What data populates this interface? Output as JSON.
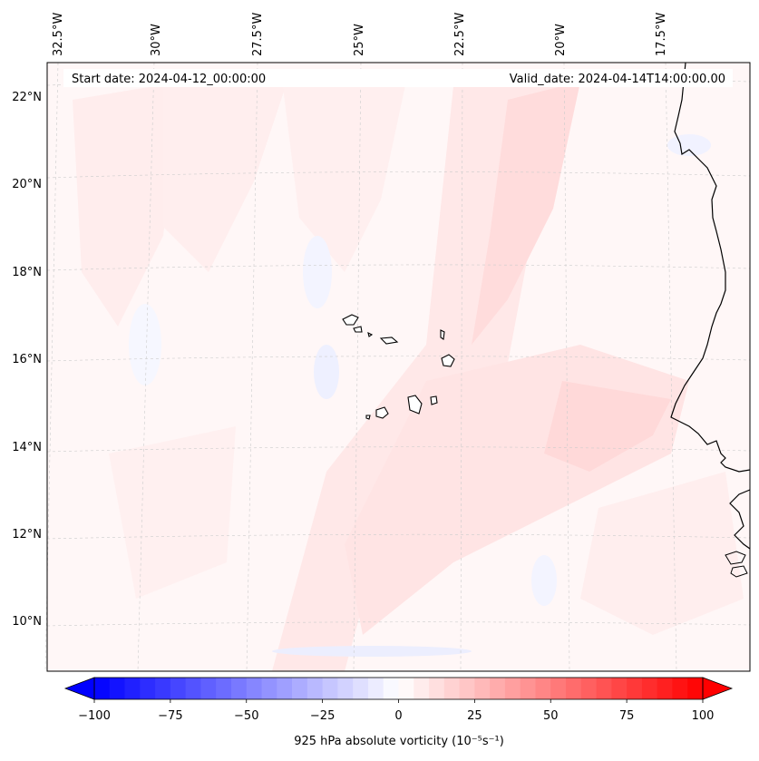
{
  "header": {
    "start_date": "Start date: 2024-04-12_00:00:00",
    "valid_date": "Valid_date: 2024-04-14T14:00:00.00"
  },
  "axes": {
    "lon_labels": [
      "32.5°W",
      "30°W",
      "27.5°W",
      "25°W",
      "22.5°W",
      "20°W",
      "17.5°W"
    ],
    "lat_labels": [
      "22°N",
      "20°N",
      "18°N",
      "16°N",
      "14°N",
      "12°N",
      "10°N"
    ]
  },
  "colorbar": {
    "ticks": [
      "−100",
      "−75",
      "−50",
      "−25",
      "0",
      "25",
      "50",
      "75",
      "100"
    ],
    "label": "925 hPa absolute vorticity (10⁻⁵s⁻¹)",
    "min": -100,
    "max": 100,
    "levels": 40,
    "negative_color": "#0000ff",
    "positive_color": "#ff0000"
  },
  "colors": {
    "field_base": "#fff7f7",
    "field_positive_light": "#ffe6e6",
    "field_positive_mid": "#ffd6d6",
    "field_negative_light": "#f1f3ff",
    "coast": "#000000",
    "grid": "#bbbbbb"
  }
}
